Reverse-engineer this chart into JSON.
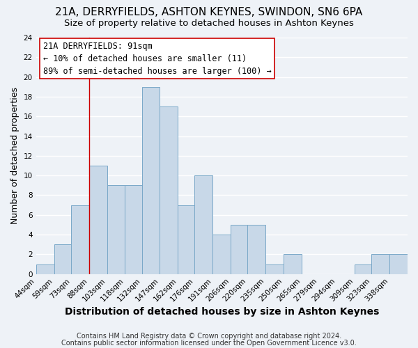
{
  "title": "21A, DERRYFIELDS, ASHTON KEYNES, SWINDON, SN6 6PA",
  "subtitle": "Size of property relative to detached houses in Ashton Keynes",
  "xlabel": "Distribution of detached houses by size in Ashton Keynes",
  "ylabel": "Number of detached properties",
  "bin_labels": [
    "44sqm",
    "59sqm",
    "73sqm",
    "88sqm",
    "103sqm",
    "118sqm",
    "132sqm",
    "147sqm",
    "162sqm",
    "176sqm",
    "191sqm",
    "206sqm",
    "220sqm",
    "235sqm",
    "250sqm",
    "265sqm",
    "279sqm",
    "294sqm",
    "309sqm",
    "323sqm",
    "338sqm"
  ],
  "bin_edges": [
    44,
    59,
    73,
    88,
    103,
    118,
    132,
    147,
    162,
    176,
    191,
    206,
    220,
    235,
    250,
    265,
    279,
    294,
    309,
    323,
    338,
    353
  ],
  "counts": [
    1,
    3,
    7,
    11,
    9,
    9,
    19,
    17,
    7,
    10,
    4,
    5,
    5,
    1,
    2,
    0,
    0,
    0,
    1,
    2,
    2
  ],
  "bar_color": "#c8d8e8",
  "bar_edge_color": "#7aa8c8",
  "vline_x": 88,
  "vline_color": "#cc0000",
  "annotation_lines": [
    "21A DERRYFIELDS: 91sqm",
    "← 10% of detached houses are smaller (11)",
    "89% of semi-detached houses are larger (100) →"
  ],
  "annotation_box_color": "#ffffff",
  "annotation_box_edge_color": "#cc0000",
  "ylim": [
    0,
    24
  ],
  "yticks": [
    0,
    2,
    4,
    6,
    8,
    10,
    12,
    14,
    16,
    18,
    20,
    22,
    24
  ],
  "footer_lines": [
    "Contains HM Land Registry data © Crown copyright and database right 2024.",
    "Contains public sector information licensed under the Open Government Licence v3.0."
  ],
  "bg_color": "#eef2f7",
  "grid_color": "#ffffff",
  "title_fontsize": 11,
  "subtitle_fontsize": 9.5,
  "xlabel_fontsize": 10,
  "ylabel_fontsize": 9,
  "tick_fontsize": 7.5,
  "annotation_fontsize": 8.5,
  "footer_fontsize": 7
}
